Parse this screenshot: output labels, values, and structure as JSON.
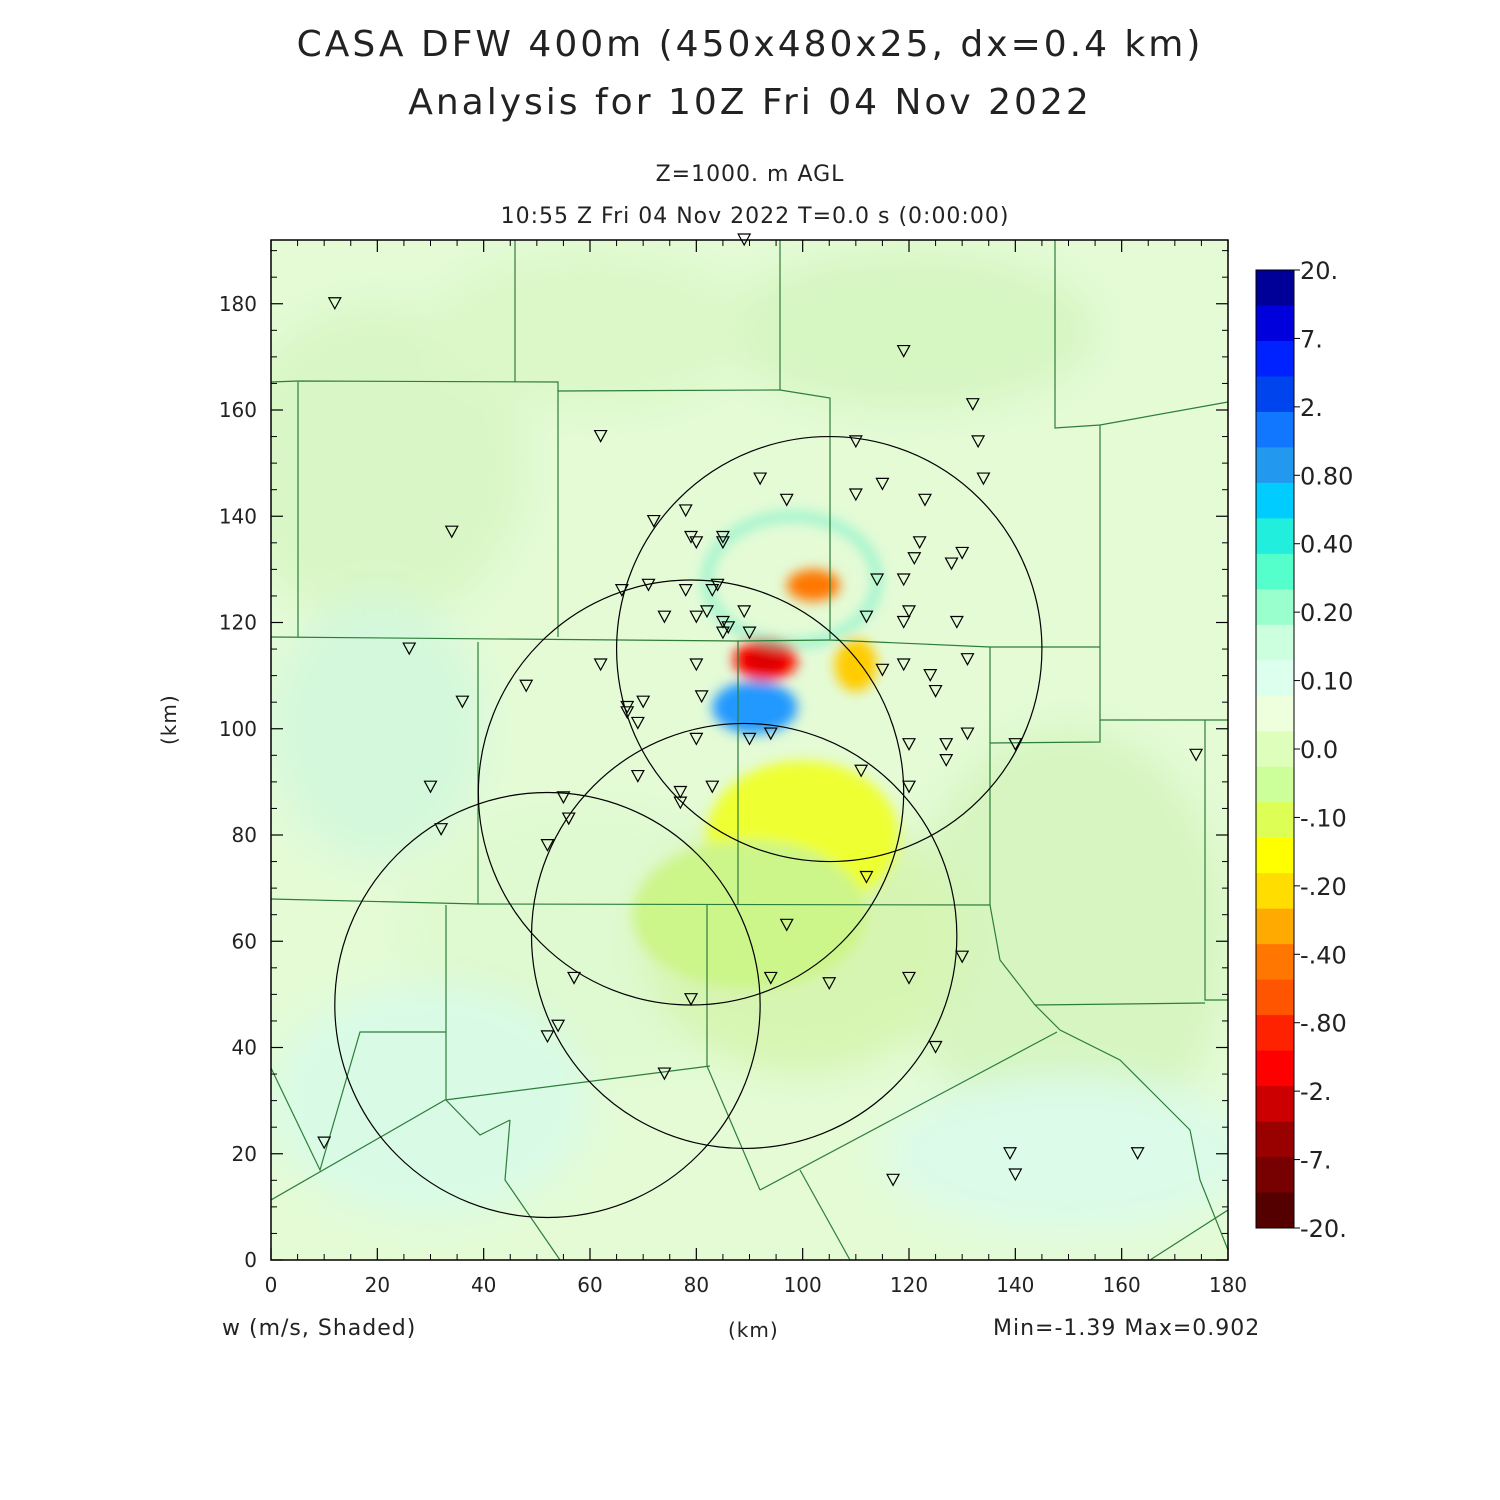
{
  "header": {
    "title_line1": "CASA DFW 400m (450x480x25, dx=0.4 km)",
    "title_line2": "Analysis for 10Z Fri 04 Nov 2022",
    "level": "Z=1000. m AGL",
    "time": "10:55 Z Fri 04 Nov 2022    T=0.0 s (0:00:00)"
  },
  "footer": {
    "field_label": "w (m/s, Shaded)",
    "x_unit": "(km)",
    "minmax": "Min=-1.39 Max=0.902"
  },
  "chart_data": {
    "type": "heatmap",
    "title": "CASA DFW 400m (450x480x25, dx=0.4 km)",
    "subtitle": "Analysis for 10Z Fri 04 Nov 2022",
    "xlabel": "(km)",
    "ylabel": "(km)",
    "xlim": [
      0,
      180
    ],
    "ylim": [
      0,
      192
    ],
    "x_ticks": [
      0,
      20,
      40,
      60,
      80,
      100,
      120,
      140,
      160,
      180
    ],
    "y_ticks": [
      0,
      20,
      40,
      60,
      80,
      100,
      120,
      140,
      160,
      180
    ],
    "colorbar": {
      "labels": [
        "20.",
        "7.",
        "2.",
        "0.80",
        "0.40",
        "0.20",
        "0.10",
        "0.0",
        "-.10",
        "-.20",
        "-.40",
        "-.80",
        "-2.",
        "-7.",
        "-20."
      ],
      "colors": [
        "#000099",
        "#0000dd",
        "#0022ff",
        "#0044ee",
        "#1177ff",
        "#2299ee",
        "#00ccff",
        "#22eedd",
        "#55ffcc",
        "#99ffcc",
        "#ccffdd",
        "#ddffee",
        "#eeffdd",
        "#ddffbb",
        "#ccff99",
        "#ddff55",
        "#ffff00",
        "#ffdd00",
        "#ffaa00",
        "#ff7700",
        "#ff5500",
        "#ff2200",
        "#ff0000",
        "#cc0000",
        "#990000",
        "#770000",
        "#550000"
      ]
    },
    "field": {
      "name": "w (m/s, Shaded)",
      "min": -1.39,
      "max": 0.902,
      "features": [
        {
          "x": 93,
          "y": 113,
          "rx": 6,
          "ry": 4,
          "value": -1.2
        },
        {
          "x": 102,
          "y": 127,
          "rx": 5,
          "ry": 3,
          "value": -0.6
        },
        {
          "x": 92,
          "y": 104,
          "rx": 5,
          "ry": 3,
          "value": 0.7
        },
        {
          "x": 110,
          "y": 112,
          "rx": 4,
          "ry": 5,
          "value": -0.3
        },
        {
          "x": 100,
          "y": 80,
          "rx": 18,
          "ry": 14,
          "value": -0.18
        },
        {
          "x": 90,
          "y": 65,
          "rx": 22,
          "ry": 14,
          "value": -0.1
        }
      ]
    },
    "radar_rings": [
      {
        "cx": 105,
        "cy": 115,
        "r": 40
      },
      {
        "cx": 79,
        "cy": 88,
        "r": 40
      },
      {
        "cx": 52,
        "cy": 48,
        "r": 40
      },
      {
        "cx": 89,
        "cy": 61,
        "r": 40
      }
    ],
    "stations": [
      [
        89,
        192
      ],
      [
        12,
        180
      ],
      [
        119,
        171
      ],
      [
        132,
        161
      ],
      [
        62,
        155
      ],
      [
        110,
        154
      ],
      [
        133,
        154
      ],
      [
        134,
        147
      ],
      [
        115,
        146
      ],
      [
        92,
        147
      ],
      [
        97,
        143
      ],
      [
        110,
        144
      ],
      [
        123,
        143
      ],
      [
        78,
        141
      ],
      [
        72,
        139
      ],
      [
        34,
        137
      ],
      [
        79,
        136
      ],
      [
        80,
        135
      ],
      [
        85,
        136
      ],
      [
        85,
        135
      ],
      [
        122,
        135
      ],
      [
        130,
        133
      ],
      [
        121,
        132
      ],
      [
        128,
        131
      ],
      [
        114,
        128
      ],
      [
        119,
        128
      ],
      [
        84,
        127
      ],
      [
        71,
        127
      ],
      [
        66,
        126
      ],
      [
        78,
        126
      ],
      [
        83,
        126
      ],
      [
        89,
        122
      ],
      [
        112,
        121
      ],
      [
        120,
        122
      ],
      [
        74,
        121
      ],
      [
        80,
        121
      ],
      [
        82,
        122
      ],
      [
        85,
        120
      ],
      [
        86,
        119
      ],
      [
        85,
        118
      ],
      [
        119,
        120
      ],
      [
        129,
        120
      ],
      [
        90,
        118
      ],
      [
        26,
        115
      ],
      [
        62,
        112
      ],
      [
        80,
        112
      ],
      [
        115,
        111
      ],
      [
        119,
        112
      ],
      [
        131,
        113
      ],
      [
        124,
        110
      ],
      [
        125,
        107
      ],
      [
        48,
        108
      ],
      [
        36,
        105
      ],
      [
        70,
        105
      ],
      [
        81,
        106
      ],
      [
        67,
        104
      ],
      [
        67,
        103
      ],
      [
        69,
        101
      ],
      [
        94,
        99
      ],
      [
        90,
        98
      ],
      [
        80,
        98
      ],
      [
        120,
        97
      ],
      [
        127,
        97
      ],
      [
        140,
        97
      ],
      [
        131,
        99
      ],
      [
        127,
        94
      ],
      [
        174,
        95
      ],
      [
        111,
        92
      ],
      [
        30,
        89
      ],
      [
        69,
        91
      ],
      [
        77,
        88
      ],
      [
        83,
        89
      ],
      [
        77,
        86
      ],
      [
        120,
        89
      ],
      [
        55,
        87
      ],
      [
        56,
        83
      ],
      [
        32,
        81
      ],
      [
        52,
        78
      ],
      [
        112,
        72
      ],
      [
        97,
        63
      ],
      [
        130,
        57
      ],
      [
        57,
        53
      ],
      [
        94,
        53
      ],
      [
        105,
        52
      ],
      [
        120,
        53
      ],
      [
        79,
        49
      ],
      [
        54,
        44
      ],
      [
        52,
        42
      ],
      [
        125,
        40
      ],
      [
        74,
        35
      ],
      [
        10,
        22
      ],
      [
        139,
        20
      ],
      [
        163,
        20
      ],
      [
        140,
        16
      ],
      [
        117,
        15
      ]
    ]
  }
}
